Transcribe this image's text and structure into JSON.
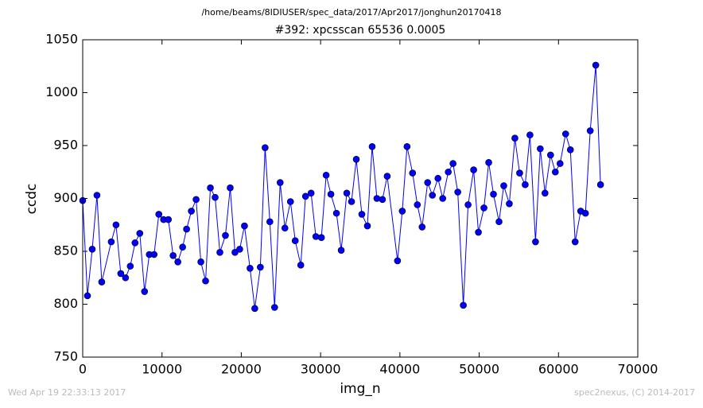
{
  "chart_data": {
    "type": "line",
    "suptitle": "/home/beams/8IDIUSER/spec_data/2017/Apr2017/jonghun20170418",
    "title": "#392: xpcsscan 65536 0.0005",
    "x_label": "img_n",
    "y_label": "ccdc",
    "color": "#0000ff",
    "marker": "o",
    "xlim": [
      0,
      70000
    ],
    "xticks": [
      0,
      10000,
      20000,
      30000,
      40000,
      50000,
      60000,
      70000
    ],
    "ylim": [
      750,
      1050
    ],
    "yticks": [
      750,
      800,
      850,
      900,
      950,
      1000,
      1050
    ],
    "grid": false,
    "x": [
      0,
      600,
      1200,
      1800,
      2400,
      3600,
      4200,
      4800,
      5400,
      6000,
      6600,
      7200,
      7800,
      8400,
      9000,
      9600,
      10200,
      10800,
      11400,
      12000,
      12600,
      13100,
      13700,
      14300,
      14900,
      15500,
      16100,
      16700,
      17300,
      18000,
      18600,
      19200,
      19800,
      20400,
      21100,
      21700,
      22400,
      23000,
      23600,
      24200,
      24900,
      25500,
      26200,
      26800,
      27500,
      28100,
      28800,
      29400,
      30100,
      30700,
      31300,
      32000,
      32600,
      33300,
      33900,
      34500,
      35200,
      35900,
      36500,
      37100,
      37800,
      38400,
      39700,
      40300,
      40900,
      41600,
      42200,
      42800,
      43500,
      44100,
      44800,
      45400,
      46100,
      46700,
      47300,
      48000,
      48600,
      49300,
      49900,
      50600,
      51200,
      51800,
      52500,
      53100,
      53800,
      54500,
      55100,
      55800,
      56400,
      57100,
      57700,
      58300,
      59000,
      59600,
      60200,
      60900,
      61500,
      62100,
      62800,
      63400,
      64000,
      64700,
      65300
    ],
    "values": [
      898,
      808,
      852,
      903,
      821,
      859,
      875,
      829,
      825,
      836,
      858,
      867,
      812,
      847,
      847,
      885,
      880,
      880,
      846,
      840,
      854,
      871,
      888,
      899,
      840,
      822,
      910,
      901,
      849,
      865,
      910,
      849,
      852,
      874,
      834,
      796,
      835,
      948,
      878,
      797,
      915,
      872,
      897,
      860,
      837,
      902,
      905,
      864,
      863,
      922,
      904,
      886,
      851,
      905,
      897,
      937,
      885,
      874,
      949,
      900,
      899,
      921,
      841,
      888,
      949,
      924,
      894,
      873,
      915,
      903,
      919,
      900,
      925,
      933,
      906,
      799,
      894,
      927,
      868,
      891,
      934,
      904,
      878,
      912,
      895,
      957,
      924,
      913,
      960,
      859,
      947,
      905,
      941,
      925,
      933,
      961,
      946,
      859,
      888,
      886,
      964,
      1026,
      913
    ]
  },
  "footer": {
    "left": "Wed Apr 19 22:33:13 2017",
    "right": "spec2nexus, (C) 2014-2017"
  }
}
